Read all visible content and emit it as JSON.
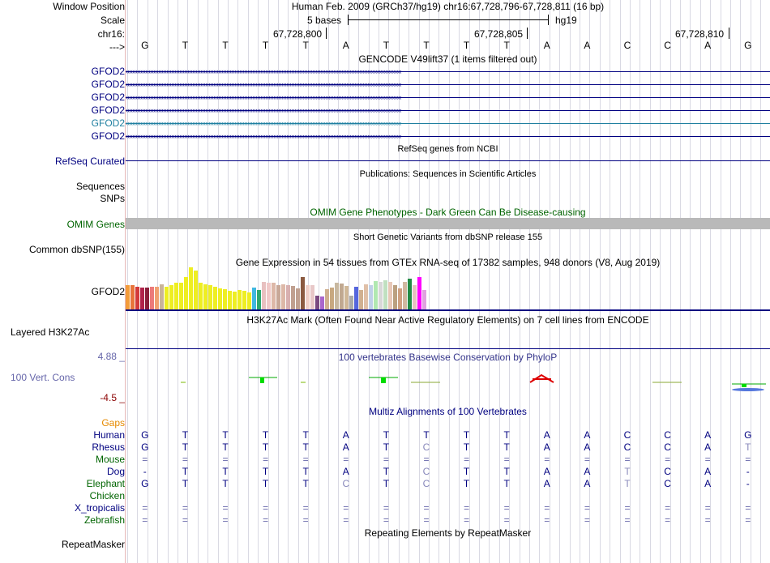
{
  "labels": {
    "window_position": "Window Position",
    "scale": "Scale",
    "chrom": "chr16:",
    "strand": "--->",
    "gfod2": "GFOD2",
    "refseq": "RefSeq Curated",
    "sequences": "Sequences",
    "snps": "SNPs",
    "omim": "OMIM Genes",
    "common_dbsnp": "Common dbSNP(155)",
    "gtex_gene": "GFOD2",
    "h3k27ac": "Layered H3K27Ac",
    "cons_max": "4.88 _",
    "cons_name": "100 Vert. Cons",
    "cons_min": "-4.5 _",
    "gaps": "Gaps",
    "species": [
      "Human",
      "Rhesus",
      "Mouse",
      "Dog",
      "Elephant",
      "Chicken",
      "X_tropicalis",
      "Zebrafish"
    ],
    "repeatmasker": "RepeatMasker"
  },
  "header": {
    "position_text": "Human Feb. 2009 (GRCh37/hg19)   chr16:67,728,796-67,728,811 (16 bp)",
    "scale_text": "5 bases",
    "assembly": "hg19",
    "ticks": [
      "67,728,800",
      "67,728,805",
      "67,728,810"
    ]
  },
  "sequence": [
    "G",
    "T",
    "T",
    "T",
    "T",
    "A",
    "T",
    "T",
    "T",
    "T",
    "A",
    "A",
    "C",
    "C",
    "A",
    "G"
  ],
  "tracks": {
    "gencode_title": "GENCODE V49lift37 (1 items filtered out)",
    "refseq_title": "RefSeq genes from NCBI",
    "publications_title": "Publications: Sequences in Scientific Articles",
    "omim_title": "OMIM Gene Phenotypes - Dark Green Can Be Disease-causing",
    "dbsnp_title": "Short Genetic Variants from dbSNP release 155",
    "gtex_title": "Gene Expression in 54 tissues from GTEx RNA-seq of 17382 samples, 948 donors (V8, Aug 2019)",
    "h3k27ac_title": "H3K27Ac Mark (Often Found Near Active Regulatory Elements) on 7 cell lines from ENCODE",
    "phylop_title": "100 vertebrates Basewise Conservation by PhyloP",
    "multiz_title": "Multiz Alignments of 100 Vertebrates",
    "repeatmasker_title": "Repeating Elements by RepeatMasker"
  },
  "alignment": {
    "Human": [
      "G",
      "T",
      "T",
      "T",
      "T",
      "A",
      "T",
      "T",
      "T",
      "T",
      "A",
      "A",
      "C",
      "C",
      "A",
      "G"
    ],
    "Rhesus": [
      "G",
      "T",
      "T",
      "T",
      "T",
      "A",
      "T",
      "C",
      "T",
      "T",
      "A",
      "A",
      "C",
      "C",
      "A",
      "T"
    ],
    "Mouse": [
      "=",
      "=",
      "=",
      "=",
      "=",
      "=",
      "=",
      "=",
      "=",
      "=",
      "=",
      "=",
      "=",
      "=",
      "=",
      "="
    ],
    "Dog": [
      "-",
      "T",
      "T",
      "T",
      "T",
      "A",
      "T",
      "C",
      "T",
      "T",
      "A",
      "A",
      "T",
      "C",
      "A",
      "-"
    ],
    "Elephant": [
      "G",
      "T",
      "T",
      "T",
      "T",
      "C",
      "T",
      "C",
      "T",
      "T",
      "A",
      "A",
      "T",
      "C",
      "A",
      "-"
    ],
    "Chicken": [
      "",
      "",
      "",
      "",
      "",
      "",
      "",
      "",
      "",
      "",
      "",
      "",
      "",
      "",
      "",
      ""
    ],
    "X_tropicalis": [
      "=",
      "=",
      "=",
      "=",
      "=",
      "=",
      "=",
      "=",
      "=",
      "=",
      "=",
      "=",
      "=",
      "=",
      "=",
      "="
    ],
    "Zebrafish": [
      "=",
      "=",
      "=",
      "=",
      "=",
      "=",
      "=",
      "=",
      "=",
      "=",
      "=",
      "=",
      "=",
      "=",
      "=",
      "="
    ]
  },
  "gtex_colors": [
    "#f39c3a",
    "#e8743b",
    "#d33a3a",
    "#b0224a",
    "#8a1e3a",
    "#ec7a7a",
    "#f0a070",
    "#c9b49a",
    "#ee2",
    "#ee2",
    "#ee2",
    "#ee2",
    "#ee2",
    "#ee2",
    "#ee2",
    "#ee2",
    "#ee2",
    "#ee2",
    "#ee2",
    "#ee2",
    "#ee2",
    "#ee2",
    "#ee2",
    "#ee2",
    "#ee2",
    "#ee2",
    "#3fb8e0",
    "#2da870",
    "#e8c0c0",
    "#f0c8c8",
    "#ddb8a8",
    "#c8a898",
    "#ddb8a8",
    "#d8b0b0",
    "#c0a090",
    "#c0a090",
    "#8b5a40",
    "#f0d0c8",
    "#e8c8c8",
    "#7a4a80",
    "#aa66cc",
    "#d0b090",
    "#c8a880",
    "#c8b8a0",
    "#c0a890",
    "#d0b898",
    "#aaa",
    "#5566dd",
    "#d0b090",
    "#e0c0a8",
    "#c0d0e8",
    "#b0e8b0",
    "#d8d8d8",
    "#c0e0c0",
    "#e8c8b8",
    "#bba080",
    "#cfa080",
    "#d0b8a0",
    "#228b45",
    "#e8c0c0",
    "#f0f",
    "#e0a0e0"
  ],
  "gtex_values": [
    30,
    30,
    28,
    27,
    27,
    28,
    28,
    31,
    28,
    30,
    33,
    33,
    40,
    52,
    48,
    33,
    31,
    30,
    28,
    26,
    25,
    23,
    22,
    24,
    23,
    21,
    27,
    24,
    34,
    33,
    33,
    30,
    31,
    30,
    29,
    26,
    40,
    30,
    30,
    17,
    16,
    25,
    27,
    33,
    32,
    29,
    17,
    28,
    24,
    31,
    30,
    35,
    34,
    36,
    34,
    30,
    26,
    34,
    38,
    30,
    40,
    24
  ],
  "colors": {
    "label_blue": "#000080",
    "cons_blue": "#6666aa",
    "dark_red": "#8b0000",
    "omim_green": "#006400",
    "gaps_orange": "#e68a00",
    "species_green": "#006400"
  }
}
